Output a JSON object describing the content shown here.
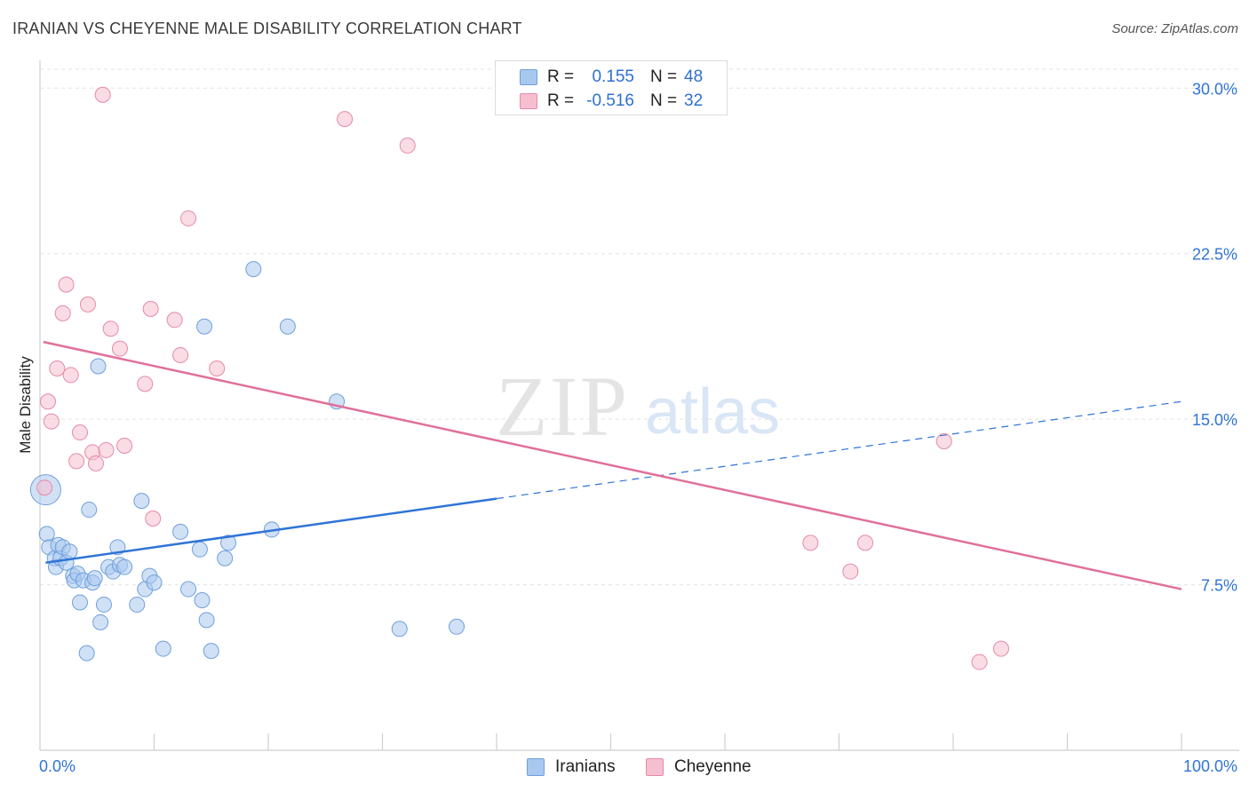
{
  "header": {
    "title": "IRANIAN VS CHEYENNE MALE DISABILITY CORRELATION CHART",
    "source": "Source: ZipAtlas.com"
  },
  "watermark": {
    "zip": "ZIP",
    "atlas": "atlas"
  },
  "stats": {
    "rows": [
      {
        "r_label": "R =",
        "r_value": "0.155",
        "n_label": "N =",
        "n_value": "48",
        "color": "#a9c8ef",
        "border": "#6f9fdc"
      },
      {
        "r_label": "R =",
        "r_value": "-0.516",
        "n_label": "N =",
        "n_value": "32",
        "color": "#f6bfd0",
        "border": "#e58aa8"
      }
    ]
  },
  "legend": {
    "items": [
      {
        "label": "Iranians",
        "color": "#a9c8ef",
        "border": "#6f9fdc"
      },
      {
        "label": "Cheyenne",
        "color": "#f6bfd0",
        "border": "#e58aa8"
      }
    ]
  },
  "chart_data": {
    "type": "scatter",
    "title": "IRANIAN VS CHEYENNE MALE DISABILITY CORRELATION CHART",
    "xlabel": "",
    "ylabel": "Male Disability",
    "xlim": [
      0,
      100
    ],
    "ylim": [
      0,
      31.5
    ],
    "x_tick_labels": [
      "0.0%",
      "100.0%"
    ],
    "y_ticks": [
      7.5,
      15.0,
      22.5,
      30.0
    ],
    "y_tick_labels": [
      "7.5%",
      "15.0%",
      "22.5%",
      "30.0%"
    ],
    "grid": true,
    "legend_position": "bottom-center",
    "series": [
      {
        "name": "Iranians",
        "color": "#6f9fdc",
        "fill": "#a9c8ef",
        "line_color": "#2f74d6",
        "trend": {
          "x0": 0.5,
          "y0": 8.5,
          "x1": 40,
          "y1": 11.4,
          "dashed_to_x": 100,
          "dashed_to_y": 15.8
        },
        "points": [
          {
            "x": 0.5,
            "y": 11.8,
            "big": true
          },
          {
            "x": 0.6,
            "y": 9.8
          },
          {
            "x": 0.8,
            "y": 9.2
          },
          {
            "x": 1.3,
            "y": 8.7
          },
          {
            "x": 1.4,
            "y": 8.3
          },
          {
            "x": 1.6,
            "y": 9.3
          },
          {
            "x": 1.8,
            "y": 8.7
          },
          {
            "x": 2.0,
            "y": 9.2
          },
          {
            "x": 2.3,
            "y": 8.5
          },
          {
            "x": 2.6,
            "y": 9.0
          },
          {
            "x": 2.9,
            "y": 7.9
          },
          {
            "x": 3.0,
            "y": 7.7
          },
          {
            "x": 3.3,
            "y": 8.0
          },
          {
            "x": 3.5,
            "y": 6.7
          },
          {
            "x": 3.8,
            "y": 7.7
          },
          {
            "x": 4.1,
            "y": 4.4
          },
          {
            "x": 4.3,
            "y": 10.9
          },
          {
            "x": 4.6,
            "y": 7.6
          },
          {
            "x": 4.8,
            "y": 7.8
          },
          {
            "x": 5.1,
            "y": 17.4
          },
          {
            "x": 5.3,
            "y": 5.8
          },
          {
            "x": 5.6,
            "y": 6.6
          },
          {
            "x": 6.0,
            "y": 8.3
          },
          {
            "x": 6.4,
            "y": 8.1
          },
          {
            "x": 6.8,
            "y": 9.2
          },
          {
            "x": 7.0,
            "y": 8.4
          },
          {
            "x": 7.4,
            "y": 8.3
          },
          {
            "x": 8.5,
            "y": 6.6
          },
          {
            "x": 8.9,
            "y": 11.3
          },
          {
            "x": 9.2,
            "y": 7.3
          },
          {
            "x": 9.6,
            "y": 7.9
          },
          {
            "x": 10.0,
            "y": 7.6
          },
          {
            "x": 10.8,
            "y": 4.6
          },
          {
            "x": 12.3,
            "y": 9.9
          },
          {
            "x": 13.0,
            "y": 7.3
          },
          {
            "x": 14.0,
            "y": 9.1
          },
          {
            "x": 14.2,
            "y": 6.8
          },
          {
            "x": 14.4,
            "y": 19.2
          },
          {
            "x": 14.6,
            "y": 5.9
          },
          {
            "x": 15.0,
            "y": 4.5
          },
          {
            "x": 16.2,
            "y": 8.7
          },
          {
            "x": 16.5,
            "y": 9.4
          },
          {
            "x": 18.7,
            "y": 21.8
          },
          {
            "x": 20.3,
            "y": 10.0
          },
          {
            "x": 21.7,
            "y": 19.2
          },
          {
            "x": 26.0,
            "y": 15.8
          },
          {
            "x": 31.5,
            "y": 5.5
          },
          {
            "x": 36.5,
            "y": 5.6
          }
        ]
      },
      {
        "name": "Cheyenne",
        "color": "#e58aa8",
        "fill": "#f6bfd0",
        "line_color": "#e0709a",
        "trend": {
          "x0": 0.3,
          "y0": 18.5,
          "x1": 100,
          "y1": 7.3
        },
        "points": [
          {
            "x": 0.4,
            "y": 11.9
          },
          {
            "x": 0.7,
            "y": 15.8
          },
          {
            "x": 1.0,
            "y": 14.9
          },
          {
            "x": 1.5,
            "y": 17.3
          },
          {
            "x": 2.0,
            "y": 19.8
          },
          {
            "x": 2.3,
            "y": 21.1
          },
          {
            "x": 2.7,
            "y": 17.0
          },
          {
            "x": 3.2,
            "y": 13.1
          },
          {
            "x": 3.5,
            "y": 14.4
          },
          {
            "x": 4.2,
            "y": 20.2
          },
          {
            "x": 4.6,
            "y": 13.5
          },
          {
            "x": 4.9,
            "y": 13.0
          },
          {
            "x": 5.5,
            "y": 29.7
          },
          {
            "x": 5.8,
            "y": 13.6
          },
          {
            "x": 6.2,
            "y": 19.1
          },
          {
            "x": 7.0,
            "y": 18.2
          },
          {
            "x": 7.4,
            "y": 13.8
          },
          {
            "x": 9.2,
            "y": 16.6
          },
          {
            "x": 9.7,
            "y": 20.0
          },
          {
            "x": 9.9,
            "y": 10.5
          },
          {
            "x": 11.8,
            "y": 19.5
          },
          {
            "x": 12.3,
            "y": 17.9
          },
          {
            "x": 13.0,
            "y": 24.1
          },
          {
            "x": 15.5,
            "y": 17.3
          },
          {
            "x": 26.7,
            "y": 28.6
          },
          {
            "x": 32.2,
            "y": 27.4
          },
          {
            "x": 67.5,
            "y": 9.4
          },
          {
            "x": 71.0,
            "y": 8.1
          },
          {
            "x": 72.3,
            "y": 9.4
          },
          {
            "x": 79.2,
            "y": 14.0
          },
          {
            "x": 82.3,
            "y": 4.0
          },
          {
            "x": 84.2,
            "y": 4.6
          }
        ]
      }
    ]
  }
}
